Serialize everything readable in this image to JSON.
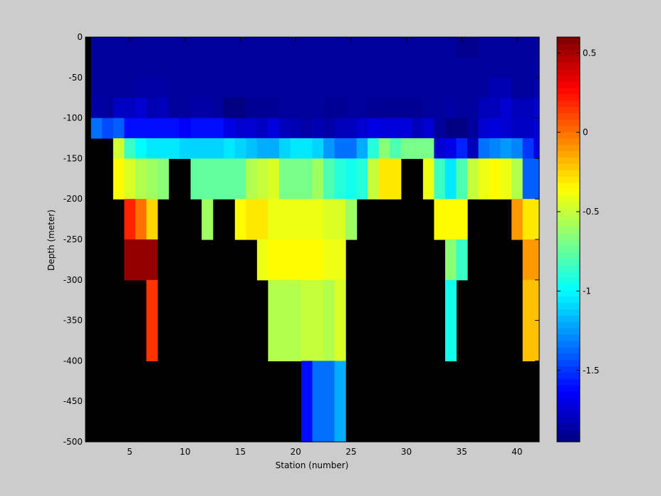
{
  "chart_data": {
    "type": "heatmap",
    "title": "",
    "xlabel": "Station (number)",
    "ylabel": "Depth (meter)",
    "xlim": [
      1,
      42
    ],
    "ylim": [
      -500,
      0
    ],
    "xticks": [
      5,
      10,
      15,
      20,
      25,
      30,
      35,
      40
    ],
    "yticks": [
      0,
      -50,
      -100,
      -150,
      -200,
      -250,
      -300,
      -350,
      -400,
      -450,
      -500
    ],
    "colorbar": {
      "colormap": "jet",
      "clim": [
        -1.95,
        0.6
      ],
      "ticks": [
        0.5,
        0,
        -0.5,
        -1,
        -1.5
      ],
      "labels": [
        "0.5",
        "0",
        "-0.5",
        "-1",
        "-1.5"
      ]
    },
    "nodata_color": "#000000",
    "grid": false,
    "cell_width_stations": 1,
    "depth_bins": [
      {
        "top": 0,
        "bottom": -25
      },
      {
        "top": -25,
        "bottom": -50
      },
      {
        "top": -50,
        "bottom": -75
      },
      {
        "top": -75,
        "bottom": -100
      },
      {
        "top": -100,
        "bottom": -125
      },
      {
        "top": -125,
        "bottom": -150
      },
      {
        "top": -150,
        "bottom": -200
      },
      {
        "top": -200,
        "bottom": -250
      },
      {
        "top": -250,
        "bottom": -300
      },
      {
        "top": -300,
        "bottom": -400
      },
      {
        "top": -400,
        "bottom": -500
      }
    ],
    "stations": [
      2,
      3,
      4,
      5,
      6,
      7,
      8,
      9,
      10,
      11,
      12,
      13,
      14,
      15,
      16,
      17,
      18,
      19,
      20,
      21,
      22,
      23,
      24,
      25,
      26,
      27,
      28,
      29,
      30,
      31,
      32,
      33,
      34,
      35,
      36,
      37,
      38,
      39,
      40,
      41,
      42
    ],
    "values": [
      [
        -1.88,
        -1.88,
        -1.88,
        -1.88,
        -1.88,
        -1.88,
        -1.88,
        -1.88,
        -1.88,
        -1.88,
        -1.88,
        -1.88,
        -1.88,
        -1.88,
        -1.88,
        -1.88,
        -1.88,
        -1.88,
        -1.88,
        -1.88,
        -1.88,
        -1.88,
        -1.88,
        -1.88,
        -1.88,
        -1.88,
        -1.88,
        -1.88,
        -1.88,
        -1.88,
        -1.88,
        -1.88,
        -1.88,
        -1.92,
        -1.92,
        -1.88,
        -1.88,
        -1.88,
        -1.88,
        -1.88,
        -1.88
      ],
      [
        -1.88,
        -1.88,
        -1.88,
        -1.88,
        -1.88,
        -1.88,
        -1.88,
        -1.88,
        -1.88,
        -1.88,
        -1.88,
        -1.88,
        -1.88,
        -1.88,
        -1.88,
        -1.88,
        -1.88,
        -1.88,
        -1.88,
        -1.88,
        -1.88,
        -1.88,
        -1.88,
        -1.88,
        -1.88,
        -1.88,
        -1.88,
        -1.88,
        -1.88,
        -1.88,
        -1.88,
        -1.88,
        -1.88,
        -1.88,
        -1.88,
        -1.88,
        -1.88,
        -1.88,
        -1.88,
        -1.88,
        -1.85
      ],
      [
        -1.88,
        -1.88,
        -1.88,
        -1.88,
        -1.85,
        -1.85,
        -1.85,
        -1.88,
        -1.88,
        -1.88,
        -1.88,
        -1.88,
        -1.88,
        -1.88,
        -1.88,
        -1.88,
        -1.88,
        -1.88,
        -1.88,
        -1.88,
        -1.88,
        -1.88,
        -1.88,
        -1.88,
        -1.88,
        -1.88,
        -1.88,
        -1.88,
        -1.88,
        -1.88,
        -1.88,
        -1.88,
        -1.88,
        -1.88,
        -1.88,
        -1.88,
        -1.82,
        -1.82,
        -1.88,
        -1.88,
        -1.82
      ],
      [
        -1.85,
        -1.88,
        -1.78,
        -1.78,
        -1.75,
        -1.82,
        -1.8,
        -1.88,
        -1.88,
        -1.85,
        -1.85,
        -1.88,
        -1.95,
        -1.95,
        -1.9,
        -1.9,
        -1.9,
        -1.88,
        -1.88,
        -1.88,
        -1.88,
        -1.9,
        -1.9,
        -1.88,
        -1.88,
        -1.9,
        -1.9,
        -1.9,
        -1.9,
        -1.9,
        -1.88,
        -1.88,
        -1.85,
        -1.88,
        -1.88,
        -1.8,
        -1.8,
        -1.75,
        -1.8,
        -1.8,
        -1.75
      ],
      [
        -1.35,
        -1.45,
        -1.4,
        -1.6,
        -1.6,
        -1.6,
        -1.6,
        -1.6,
        -1.65,
        -1.6,
        -1.6,
        -1.6,
        -1.7,
        -1.75,
        -1.75,
        -1.78,
        -1.72,
        -1.8,
        -1.82,
        -1.85,
        -1.82,
        -1.85,
        -1.8,
        -1.8,
        -1.75,
        -1.7,
        -1.72,
        -1.72,
        -1.72,
        -1.8,
        -1.75,
        -1.88,
        -1.95,
        -1.95,
        -1.88,
        -1.75,
        -1.72,
        -1.75,
        -1.78,
        -1.78,
        -1.72
      ],
      [
        null,
        null,
        -0.48,
        -0.85,
        -1.0,
        -1.05,
        -1.05,
        -1.05,
        -1.1,
        -1.1,
        -1.1,
        -1.1,
        -1.05,
        -1.1,
        -1.15,
        -1.2,
        -1.2,
        -1.1,
        -1.05,
        -1.05,
        -1.1,
        -1.25,
        -1.35,
        -1.35,
        -1.2,
        -0.9,
        -0.65,
        -0.8,
        -0.7,
        -0.7,
        -0.7,
        -1.75,
        -1.7,
        -1.55,
        -1.8,
        -1.35,
        -1.3,
        -1.25,
        -1.3,
        -1.5,
        -1.7
      ],
      [
        null,
        null,
        -0.35,
        -0.45,
        -0.55,
        -0.6,
        -0.65,
        null,
        null,
        -0.75,
        -0.75,
        -0.75,
        -0.75,
        -0.75,
        -0.55,
        -0.5,
        -0.45,
        -0.7,
        -0.7,
        -0.7,
        -0.6,
        -0.8,
        -0.9,
        -0.95,
        -0.9,
        -0.5,
        -0.3,
        -0.3,
        null,
        null,
        -0.4,
        -0.85,
        -1.05,
        -0.8,
        -0.5,
        -0.4,
        -0.35,
        -0.4,
        -0.55,
        -1.4,
        -1.4
      ],
      [
        null,
        null,
        null,
        0.2,
        0.0,
        -0.25,
        null,
        null,
        null,
        null,
        -0.6,
        null,
        null,
        -0.35,
        -0.3,
        -0.3,
        -0.4,
        -0.4,
        -0.4,
        -0.4,
        -0.4,
        -0.45,
        -0.45,
        -0.6,
        null,
        null,
        null,
        null,
        null,
        null,
        null,
        -0.35,
        -0.35,
        -0.35,
        null,
        null,
        null,
        null,
        -0.1,
        -0.3,
        -0.3
      ],
      [
        null,
        null,
        null,
        0.55,
        0.55,
        0.55,
        null,
        null,
        null,
        null,
        null,
        null,
        null,
        null,
        null,
        -0.4,
        -0.35,
        -0.35,
        -0.35,
        -0.35,
        -0.35,
        -0.4,
        -0.4,
        null,
        null,
        null,
        null,
        null,
        null,
        null,
        null,
        null,
        -0.65,
        -0.85,
        null,
        null,
        null,
        null,
        null,
        -0.1,
        -0.1
      ],
      [
        null,
        null,
        null,
        null,
        null,
        0.15,
        null,
        null,
        null,
        null,
        null,
        null,
        null,
        null,
        null,
        null,
        -0.55,
        -0.55,
        -0.55,
        -0.5,
        -0.5,
        -0.55,
        -0.45,
        null,
        null,
        null,
        null,
        null,
        null,
        null,
        null,
        null,
        -0.95,
        null,
        null,
        null,
        null,
        null,
        null,
        -0.2,
        -0.2
      ],
      [
        null,
        null,
        null,
        null,
        null,
        null,
        null,
        null,
        null,
        null,
        null,
        null,
        null,
        null,
        null,
        null,
        null,
        null,
        null,
        -1.6,
        -1.35,
        -1.35,
        -1.2,
        null,
        null,
        null,
        null,
        null,
        null,
        null,
        null,
        null,
        null,
        null,
        null,
        null,
        null,
        null,
        null,
        null,
        null
      ]
    ]
  }
}
